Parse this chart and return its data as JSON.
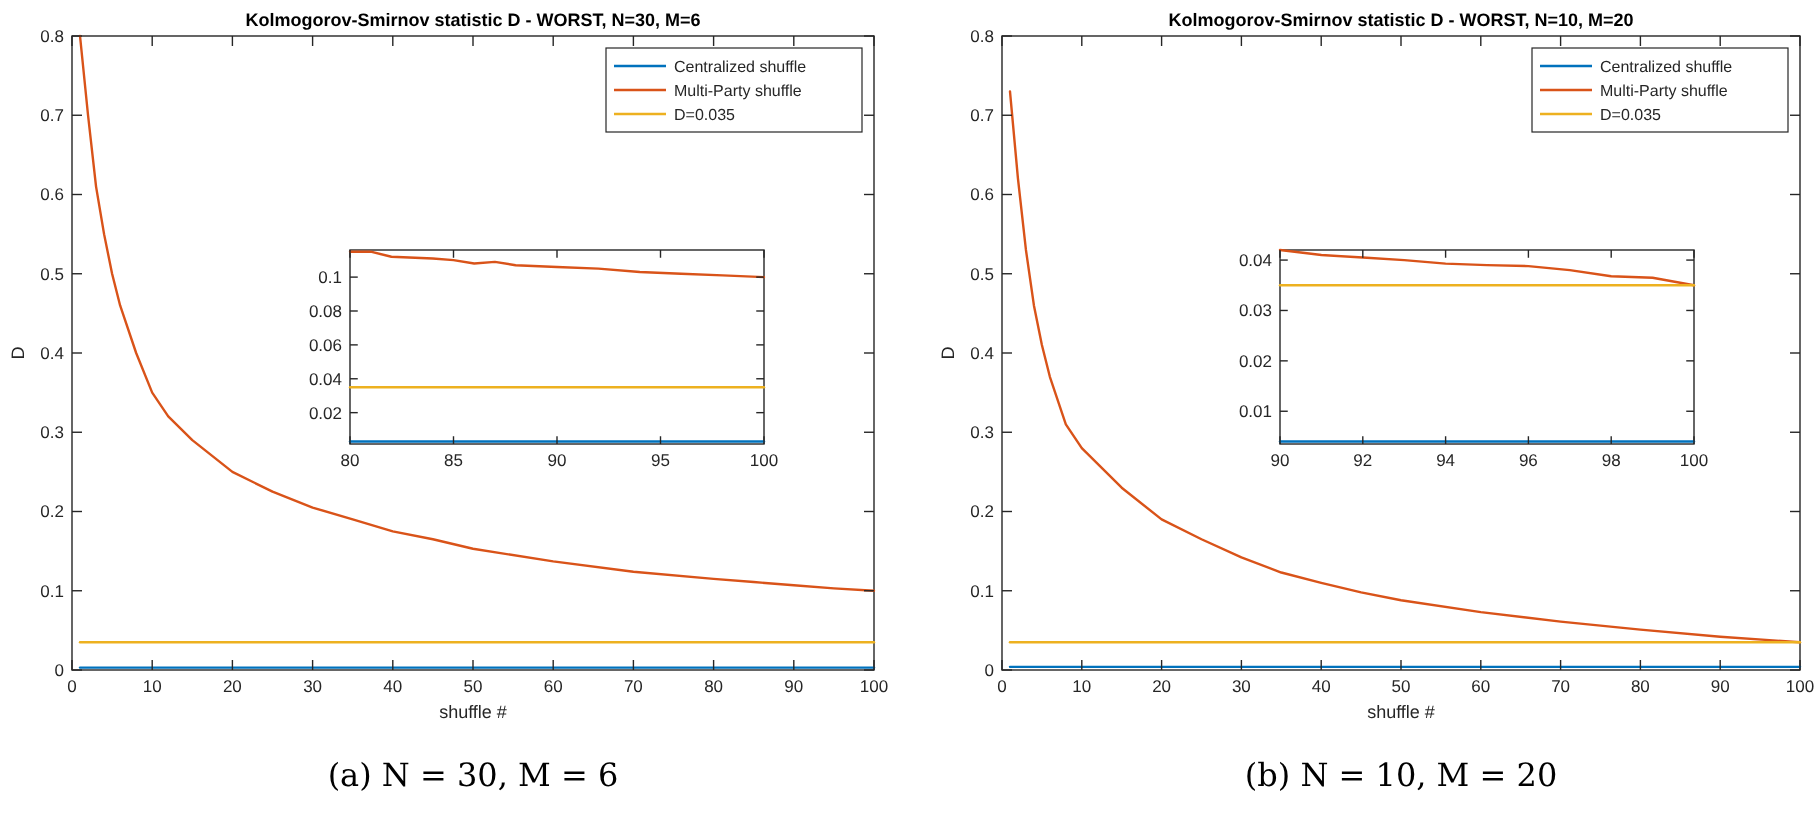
{
  "chart_data": [
    {
      "type": "line",
      "title": "Kolmogorov-Smirnov statistic D - WORST, N=30, M=6",
      "xlabel": "shuffle #",
      "ylabel": "D",
      "xlim": [
        0,
        100
      ],
      "ylim": [
        0,
        0.8
      ],
      "xticks": [
        0,
        10,
        20,
        30,
        40,
        50,
        60,
        70,
        80,
        90,
        100
      ],
      "yticks": [
        0,
        0.1,
        0.2,
        0.3,
        0.4,
        0.5,
        0.6,
        0.7,
        0.8
      ],
      "legend": "top right",
      "annotations": [
        "(a) N = 30, M = 6"
      ],
      "series": [
        {
          "name": "Centralized shuffle",
          "color": "#0072bd",
          "x": [
            1,
            100
          ],
          "values": [
            0.003,
            0.003
          ]
        },
        {
          "name": "Multi-Party shuffle",
          "color": "#d95319",
          "x": [
            1,
            2,
            3,
            4,
            5,
            6,
            8,
            10,
            12,
            15,
            20,
            25,
            30,
            35,
            40,
            45,
            50,
            60,
            70,
            80,
            85,
            90,
            95,
            100
          ],
          "values": [
            0.8,
            0.7,
            0.61,
            0.55,
            0.5,
            0.46,
            0.4,
            0.35,
            0.32,
            0.29,
            0.25,
            0.225,
            0.205,
            0.19,
            0.175,
            0.165,
            0.153,
            0.137,
            0.124,
            0.115,
            0.111,
            0.107,
            0.103,
            0.1
          ]
        },
        {
          "name": "D=0.035",
          "color": "#edb120",
          "x": [
            1,
            100
          ],
          "values": [
            0.035,
            0.035
          ]
        }
      ]
    },
    {
      "type": "line",
      "xlim": [
        80,
        100
      ],
      "ylim": [
        0.0015,
        0.116
      ],
      "xticks": [
        80,
        85,
        90,
        95,
        100
      ],
      "yticks": [
        0.02,
        0.04,
        0.06,
        0.08,
        0.1
      ],
      "series": [
        {
          "color": "#0072bd",
          "x": [
            80,
            100
          ],
          "values": [
            0.003,
            0.003
          ]
        },
        {
          "color": "#d95319",
          "x": [
            80,
            81,
            82,
            84,
            85,
            86,
            87,
            88,
            90,
            92,
            94,
            96,
            98,
            100
          ],
          "values": [
            0.115,
            0.115,
            0.112,
            0.111,
            0.11,
            0.108,
            0.109,
            0.107,
            0.106,
            0.105,
            0.103,
            0.102,
            0.101,
            0.1
          ]
        },
        {
          "color": "#edb120",
          "x": [
            80,
            100
          ],
          "values": [
            0.035,
            0.035
          ]
        }
      ]
    },
    {
      "type": "line",
      "title": "Kolmogorov-Smirnov statistic D - WORST, N=10, M=20",
      "xlabel": "shuffle #",
      "ylabel": "D",
      "xlim": [
        0,
        100
      ],
      "ylim": [
        0,
        0.8
      ],
      "xticks": [
        0,
        10,
        20,
        30,
        40,
        50,
        60,
        70,
        80,
        90,
        100
      ],
      "yticks": [
        0,
        0.1,
        0.2,
        0.3,
        0.4,
        0.5,
        0.6,
        0.7,
        0.8
      ],
      "legend": "top right",
      "annotations": [
        "(b) N = 10, M = 20"
      ],
      "series": [
        {
          "name": "Centralized shuffle",
          "color": "#0072bd",
          "x": [
            1,
            100
          ],
          "values": [
            0.004,
            0.004
          ]
        },
        {
          "name": "Multi-Party shuffle",
          "color": "#d95319",
          "x": [
            1,
            2,
            3,
            4,
            5,
            6,
            8,
            10,
            15,
            20,
            25,
            30,
            35,
            40,
            45,
            50,
            60,
            70,
            80,
            90,
            100
          ],
          "values": [
            0.73,
            0.62,
            0.53,
            0.46,
            0.41,
            0.37,
            0.31,
            0.28,
            0.23,
            0.19,
            0.165,
            0.142,
            0.123,
            0.11,
            0.098,
            0.088,
            0.073,
            0.061,
            0.051,
            0.042,
            0.035
          ]
        },
        {
          "name": "D=0.035",
          "color": "#edb120",
          "x": [
            1,
            100
          ],
          "values": [
            0.035,
            0.035
          ]
        }
      ]
    },
    {
      "type": "line",
      "xlim": [
        90,
        100
      ],
      "ylim": [
        0.0035,
        0.042
      ],
      "xticks": [
        90,
        92,
        94,
        96,
        98,
        100
      ],
      "yticks": [
        0.01,
        0.02,
        0.03,
        0.04
      ],
      "series": [
        {
          "color": "#0072bd",
          "x": [
            90,
            100
          ],
          "values": [
            0.004,
            0.004
          ]
        },
        {
          "color": "#d95319",
          "x": [
            90,
            91,
            92,
            93,
            94,
            95,
            96,
            97,
            98,
            99,
            100
          ],
          "values": [
            0.042,
            0.041,
            0.0405,
            0.04,
            0.0393,
            0.039,
            0.0388,
            0.038,
            0.0368,
            0.0365,
            0.035
          ]
        },
        {
          "color": "#edb120",
          "x": [
            90,
            100
          ],
          "values": [
            0.035,
            0.035
          ]
        }
      ]
    }
  ]
}
